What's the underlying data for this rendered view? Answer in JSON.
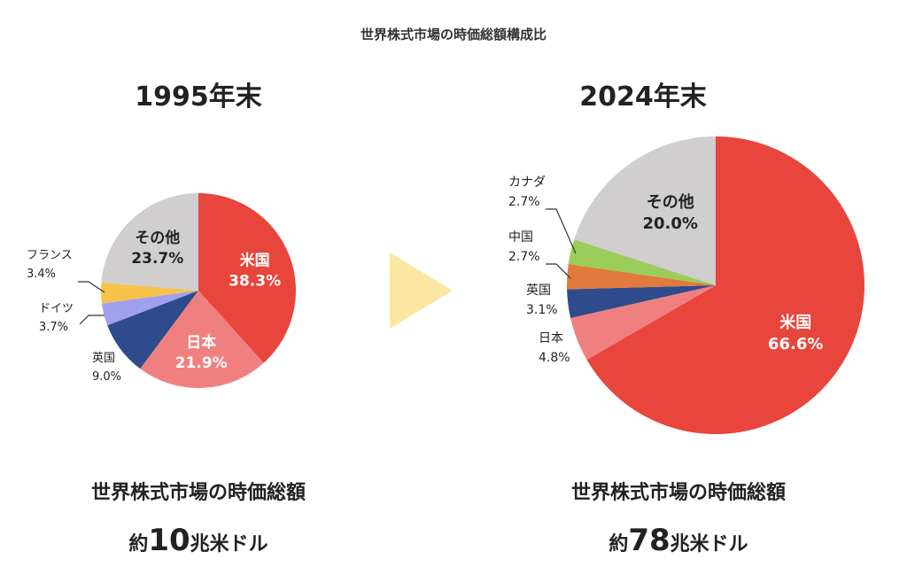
{
  "title": "世界株式市場の時価総額構成比",
  "colors": {
    "usa": "#e8453c",
    "japan": "#f08080",
    "uk": "#2f4b8c",
    "germany": "#a0a0f0",
    "france": "#f5c24a",
    "china": "#e07a3f",
    "canada": "#9acd5a",
    "other": "#d0cece",
    "arrow": "#fbe7a1"
  },
  "chart_data": [
    {
      "type": "pie",
      "title": "1995年末",
      "slices": [
        {
          "label": "米国",
          "value": 38.3,
          "value_label": "38.3%",
          "color_key": "usa",
          "label_position": "inside"
        },
        {
          "label": "日本",
          "value": 21.9,
          "value_label": "21.9%",
          "color_key": "japan",
          "label_position": "inside"
        },
        {
          "label": "英国",
          "value": 9.0,
          "value_label": "9.0%",
          "color_key": "uk",
          "label_position": "outside"
        },
        {
          "label": "ドイツ",
          "value": 3.7,
          "value_label": "3.7%",
          "color_key": "germany",
          "label_position": "outside"
        },
        {
          "label": "フランス",
          "value": 3.4,
          "value_label": "3.4%",
          "color_key": "france",
          "label_position": "outside"
        },
        {
          "label": "その他",
          "value": 23.7,
          "value_label": "23.7%",
          "color_key": "other",
          "label_position": "inside"
        }
      ],
      "footer": {
        "line1": "世界株式市場の時価総額",
        "prefix": "約",
        "number": "10",
        "unit": "兆米ドル"
      }
    },
    {
      "type": "pie",
      "title": "2024年末",
      "slices": [
        {
          "label": "米国",
          "value": 66.6,
          "value_label": "66.6%",
          "color_key": "usa",
          "label_position": "inside"
        },
        {
          "label": "日本",
          "value": 4.8,
          "value_label": "4.8%",
          "color_key": "japan",
          "label_position": "outside"
        },
        {
          "label": "英国",
          "value": 3.1,
          "value_label": "3.1%",
          "color_key": "uk",
          "label_position": "outside"
        },
        {
          "label": "中国",
          "value": 2.7,
          "value_label": "2.7%",
          "color_key": "china",
          "label_position": "outside"
        },
        {
          "label": "カナダ",
          "value": 2.7,
          "value_label": "2.7%",
          "color_key": "canada",
          "label_position": "outside"
        },
        {
          "label": "その他",
          "value": 20.0,
          "value_label": "20.0%",
          "color_key": "other",
          "label_position": "inside"
        }
      ],
      "footer": {
        "line1": "世界株式市場の時価総額",
        "prefix": "約",
        "number": "78",
        "unit": "兆米ドル"
      }
    }
  ]
}
